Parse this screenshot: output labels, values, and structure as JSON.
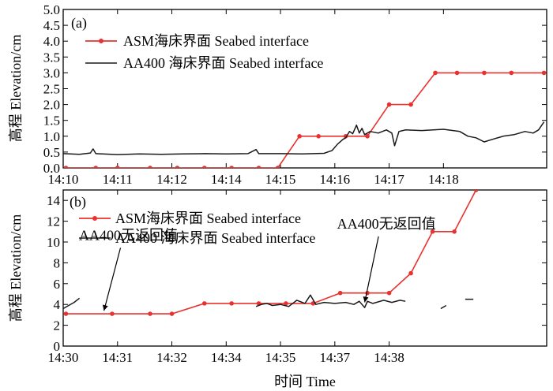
{
  "figure": {
    "xlabel": "时间 Time",
    "ylabel": "高程 Elevation/cm",
    "colors": {
      "asm": "#e8322f",
      "aa400": "#1a1a1a"
    }
  },
  "chart_data": [
    {
      "type": "line",
      "panel_label": "(a)",
      "ylim": [
        0,
        5
      ],
      "yticks": [
        "0.0",
        "0.5",
        "1.0",
        "1.5",
        "2.0",
        "2.5",
        "3.0",
        "3.5",
        "4.0",
        "4.5",
        "5.0"
      ],
      "xlim": [
        0,
        8.9
      ],
      "xticks": [
        {
          "x": 0,
          "label": "14:10"
        },
        {
          "x": 1,
          "label": "14:11"
        },
        {
          "x": 2,
          "label": "14:12"
        },
        {
          "x": 3,
          "label": "14:14"
        },
        {
          "x": 4,
          "label": "14:15"
        },
        {
          "x": 5,
          "label": "14:16"
        },
        {
          "x": 6,
          "label": "14:17"
        },
        {
          "x": 7,
          "label": "14:18"
        }
      ],
      "legend_position": "top-left",
      "series": [
        {
          "name": "ASM海床界面 Seabed interface",
          "markers": true,
          "points": [
            [
              0.05,
              0
            ],
            [
              0.6,
              0
            ],
            [
              1.0,
              0
            ],
            [
              1.6,
              0
            ],
            [
              2.1,
              0
            ],
            [
              2.6,
              0
            ],
            [
              3.1,
              0
            ],
            [
              3.6,
              0
            ],
            [
              3.95,
              0
            ],
            [
              4.35,
              1.0
            ],
            [
              4.7,
              1.0
            ],
            [
              5.2,
              1.0
            ],
            [
              5.6,
              1.0
            ],
            [
              6.0,
              2.0
            ],
            [
              6.4,
              2.0
            ],
            [
              6.85,
              3.0
            ],
            [
              7.25,
              3.0
            ],
            [
              7.75,
              3.0
            ],
            [
              8.25,
              3.0
            ],
            [
              8.85,
              3.0
            ]
          ]
        },
        {
          "name": "AA400 海床界面 Seabed interface",
          "markers": false,
          "points": [
            [
              0.0,
              0.45
            ],
            [
              0.3,
              0.43
            ],
            [
              0.5,
              0.47
            ],
            [
              0.55,
              0.6
            ],
            [
              0.6,
              0.45
            ],
            [
              1.0,
              0.42
            ],
            [
              1.4,
              0.44
            ],
            [
              1.8,
              0.43
            ],
            [
              2.2,
              0.44
            ],
            [
              2.6,
              0.45
            ],
            [
              3.0,
              0.44
            ],
            [
              3.4,
              0.45
            ],
            [
              3.55,
              0.58
            ],
            [
              3.6,
              0.45
            ],
            [
              4.0,
              0.45
            ],
            [
              4.4,
              0.44
            ],
            [
              4.8,
              0.46
            ],
            [
              4.95,
              0.55
            ],
            [
              5.05,
              0.75
            ],
            [
              5.15,
              0.9
            ],
            [
              5.2,
              0.95
            ],
            [
              5.27,
              1.15
            ],
            [
              5.33,
              1.08
            ],
            [
              5.4,
              1.35
            ],
            [
              5.45,
              1.1
            ],
            [
              5.5,
              1.25
            ],
            [
              5.55,
              1.05
            ],
            [
              5.65,
              1.15
            ],
            [
              5.8,
              1.1
            ],
            [
              5.95,
              1.2
            ],
            [
              6.05,
              1.1
            ],
            [
              6.1,
              0.7
            ],
            [
              6.18,
              1.15
            ],
            [
              6.3,
              1.2
            ],
            [
              6.6,
              1.18
            ],
            [
              7.0,
              1.22
            ],
            [
              7.3,
              1.15
            ],
            [
              7.45,
              1.0
            ],
            [
              7.6,
              0.95
            ],
            [
              7.75,
              0.82
            ],
            [
              7.9,
              0.9
            ],
            [
              8.1,
              1.0
            ],
            [
              8.3,
              1.05
            ],
            [
              8.5,
              1.15
            ],
            [
              8.65,
              1.1
            ],
            [
              8.75,
              1.2
            ],
            [
              8.85,
              1.45
            ]
          ]
        }
      ]
    },
    {
      "type": "line",
      "panel_label": "(b)",
      "ylim": [
        0,
        15
      ],
      "yticks": [
        "0",
        "2",
        "4",
        "6",
        "8",
        "10",
        "12",
        "14"
      ],
      "xlim": [
        0,
        8.9
      ],
      "xticks": [
        {
          "x": 0,
          "label": "14:30"
        },
        {
          "x": 1,
          "label": "14:31"
        },
        {
          "x": 2,
          "label": "14:32"
        },
        {
          "x": 3,
          "label": "14:34"
        },
        {
          "x": 4,
          "label": "14:35"
        },
        {
          "x": 5,
          "label": "14:37"
        },
        {
          "x": 6,
          "label": "14:38"
        }
      ],
      "legend_position": "top-left",
      "annotations": [
        {
          "text": "AA400无返回值",
          "x": 1.2,
          "y": 10.2,
          "arrow_to": [
            0.75,
            3.4
          ]
        },
        {
          "text": "AA400无返回值",
          "x": 5.95,
          "y": 11.3,
          "arrow_to": [
            5.55,
            4.2
          ]
        }
      ],
      "series": [
        {
          "name": "ASM海床界面 Seabed interface",
          "markers": true,
          "points": [
            [
              0.05,
              3.1
            ],
            [
              0.9,
              3.1
            ],
            [
              1.6,
              3.1
            ],
            [
              2.0,
              3.1
            ],
            [
              2.6,
              4.1
            ],
            [
              3.1,
              4.1
            ],
            [
              3.6,
              4.1
            ],
            [
              4.1,
              4.1
            ],
            [
              4.6,
              4.1
            ],
            [
              5.1,
              5.1
            ],
            [
              5.6,
              5.1
            ],
            [
              6.0,
              5.1
            ],
            [
              6.4,
              7.0
            ],
            [
              6.8,
              11.0
            ],
            [
              7.2,
              11.0
            ],
            [
              7.6,
              15.0
            ]
          ]
        },
        {
          "name": "AA400 海床界面 Seabed interface",
          "markers": false,
          "segments": [
            [
              [
                0.0,
                3.6
              ],
              [
                0.1,
                3.9
              ],
              [
                0.2,
                4.2
              ],
              [
                0.3,
                4.6
              ]
            ],
            [
              [
                3.55,
                3.8
              ],
              [
                3.65,
                4.0
              ],
              [
                3.75,
                4.1
              ],
              [
                3.85,
                3.9
              ],
              [
                4.0,
                4.0
              ],
              [
                4.15,
                3.8
              ],
              [
                4.3,
                4.4
              ],
              [
                4.45,
                4.1
              ],
              [
                4.55,
                4.9
              ],
              [
                4.65,
                4.0
              ],
              [
                4.8,
                4.2
              ],
              [
                5.0,
                4.1
              ],
              [
                5.2,
                4.2
              ],
              [
                5.35,
                4.0
              ],
              [
                5.45,
                4.3
              ],
              [
                5.55,
                3.7
              ],
              [
                5.6,
                4.3
              ],
              [
                5.7,
                4.1
              ],
              [
                5.9,
                4.4
              ],
              [
                6.05,
                4.2
              ],
              [
                6.2,
                4.4
              ],
              [
                6.3,
                4.3
              ]
            ],
            [
              [
                6.95,
                3.6
              ],
              [
                7.05,
                3.9
              ]
            ],
            [
              [
                7.4,
                4.5
              ],
              [
                7.55,
                4.5
              ]
            ]
          ]
        }
      ]
    }
  ]
}
